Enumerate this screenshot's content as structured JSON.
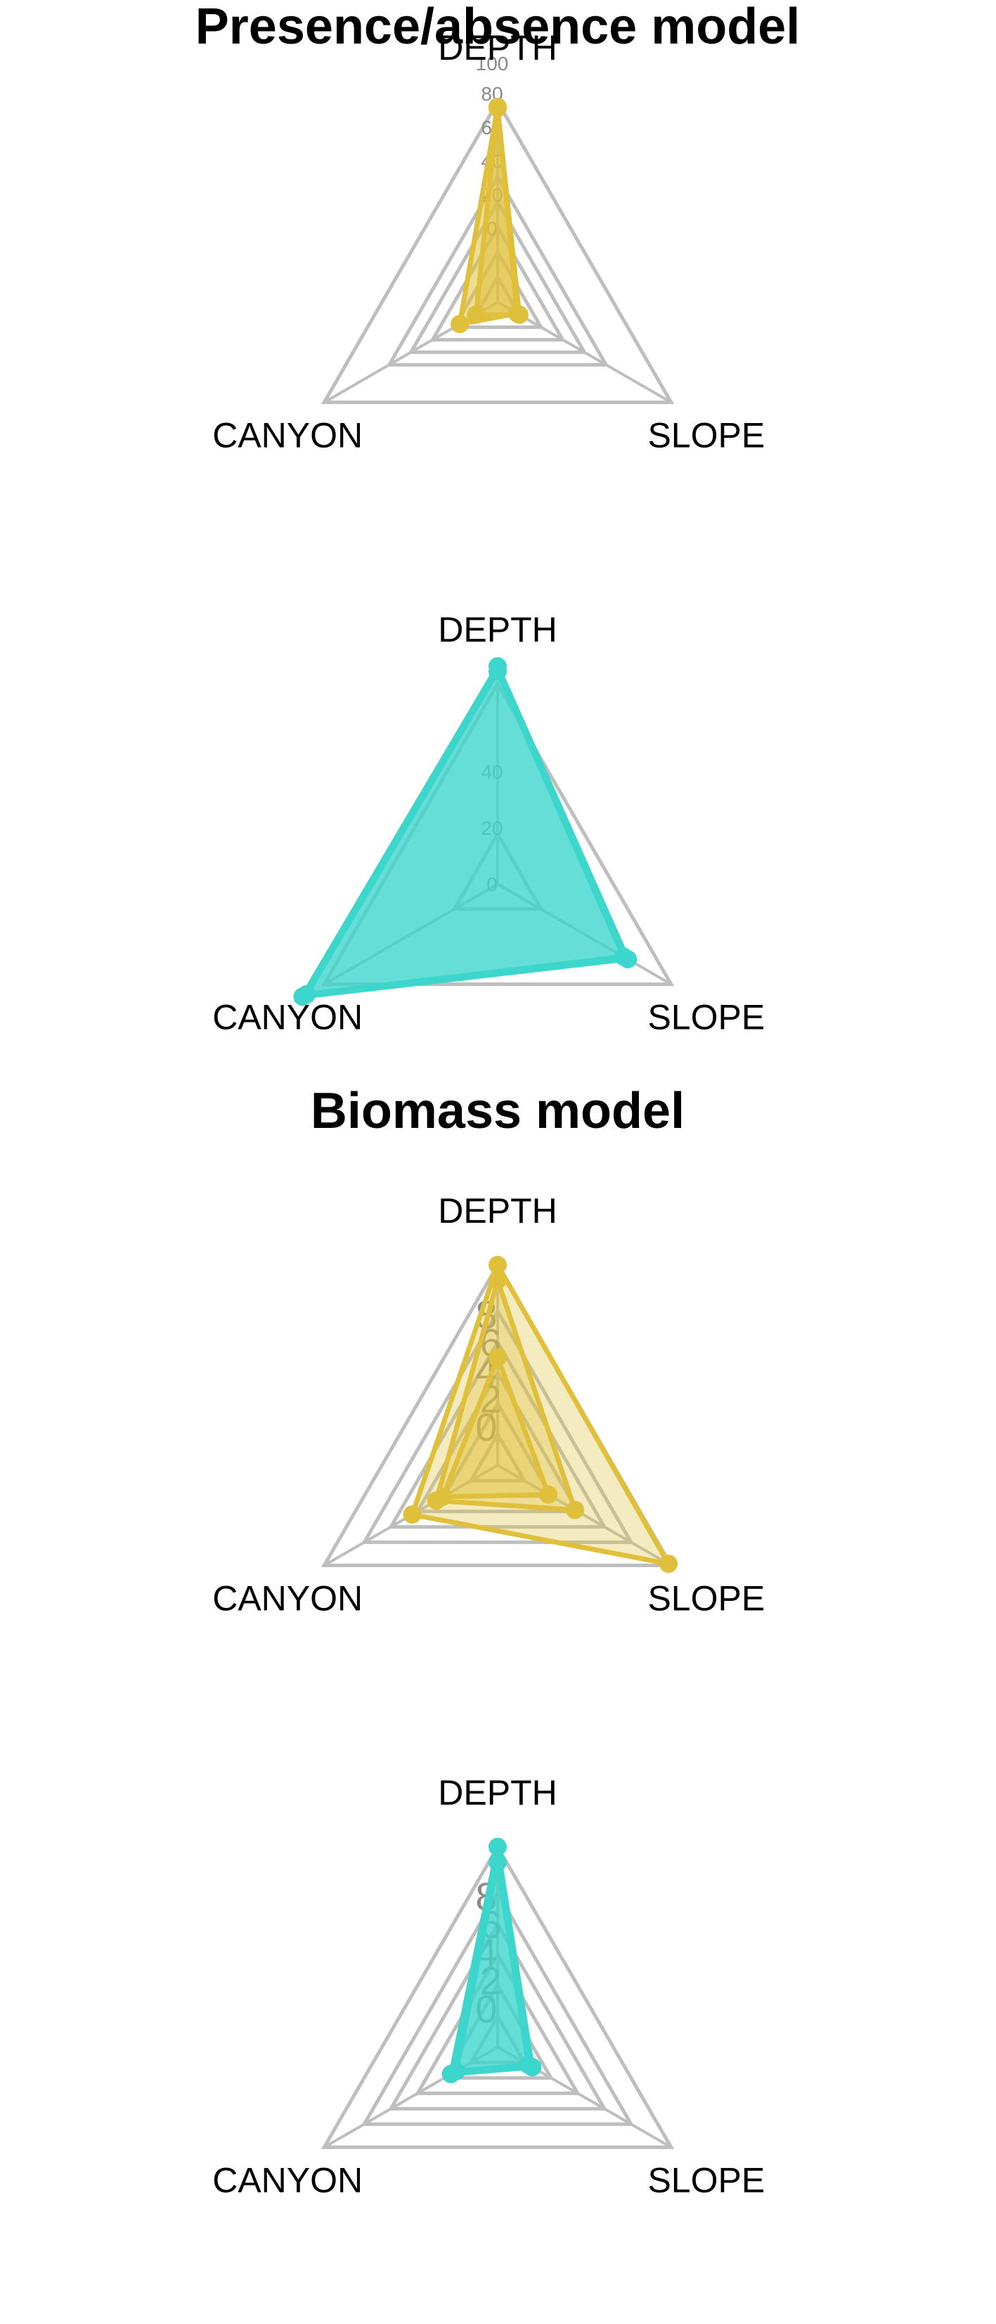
{
  "figure": {
    "section_titles": [
      "Presence/absence model",
      "Biomass model"
    ]
  },
  "colors": {
    "gold": "#E0C03A",
    "teal": "#3DD6CC",
    "grid": "#BEBEBE"
  },
  "chart_data": [
    {
      "type": "radar",
      "title": "Presence/absence model",
      "axes": [
        "DEPTH",
        "SLOPE",
        "CANYON"
      ],
      "tick_labels": [
        "0",
        "20",
        "40",
        "60",
        "80",
        "100"
      ],
      "range": [
        -60,
        100
      ],
      "grid_levels": [
        -40,
        -20,
        0,
        20,
        40
      ],
      "grid": true,
      "fill_color": "#E0C03A",
      "series": [
        {
          "values": [
            96,
            -42,
            -25
          ]
        },
        {
          "values": [
            95,
            -40,
            -40
          ]
        }
      ]
    },
    {
      "type": "radar",
      "title": "",
      "axes": [
        "DEPTH",
        "SLOPE",
        "CANYON"
      ],
      "tick_labels": [
        "0",
        "20",
        "40"
      ],
      "range": [
        -40,
        40
      ],
      "grid_levels": [
        -20
      ],
      "grid": true,
      "fill_color": "#3DD6CC",
      "series": [
        {
          "values": [
            47,
            20,
            50
          ]
        },
        {
          "values": [
            45,
            18,
            48
          ]
        }
      ]
    },
    {
      "type": "radar",
      "title": "Biomass model",
      "axes": [
        "DEPTH",
        "SLOPE",
        "CANYON"
      ],
      "tick_labels": [
        "8",
        "6",
        "4",
        "2",
        "0"
      ],
      "range": [
        -4,
        9
      ],
      "grid_levels": [
        -2,
        0,
        2,
        4,
        6
      ],
      "grid": true,
      "fill_color": "#E0C03A",
      "series": [
        {
          "values": [
            9,
            8.8,
            2.4
          ]
        },
        {
          "values": [
            8.0,
            1.8,
            0.6
          ]
        },
        {
          "values": [
            3.0,
            -0.2,
            0.1
          ]
        }
      ]
    },
    {
      "type": "radar",
      "title": "",
      "axes": [
        "DEPTH",
        "SLOPE",
        "CANYON"
      ],
      "tick_labels": [
        "8",
        "6",
        "4",
        "2",
        "0"
      ],
      "range": [
        -4,
        9
      ],
      "grid_levels": [
        -2,
        0,
        2,
        4,
        6
      ],
      "grid": true,
      "fill_color": "#3DD6CC",
      "series": [
        {
          "values": [
            9,
            -1.4,
            -0.5
          ]
        },
        {
          "values": [
            8.0,
            -1.7,
            -0.9
          ]
        }
      ]
    }
  ]
}
